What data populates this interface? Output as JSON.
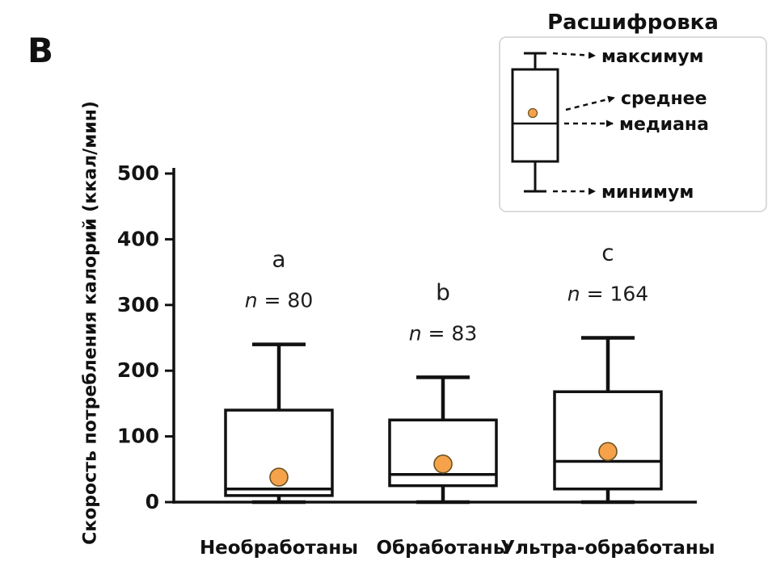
{
  "panel_label": "В",
  "legend": {
    "title": "Расшифровка",
    "items": [
      {
        "name": "maximum",
        "label": "максимум"
      },
      {
        "name": "mean",
        "label": "среднее"
      },
      {
        "name": "median",
        "label": "медиана"
      },
      {
        "name": "minimum",
        "label": "минимум"
      }
    ]
  },
  "chart_data": {
    "type": "boxplot",
    "title": "",
    "ylabel": "Скорость потребления калорий (ккал/мин)",
    "xlabel": "",
    "ylim": [
      0,
      500
    ],
    "yticks": [
      0,
      100,
      200,
      300,
      400,
      500
    ],
    "grid": false,
    "categories": [
      "Необработаны",
      "Обработаны",
      "Ультра-обработаны"
    ],
    "series": [
      {
        "category": "Необработаны",
        "letter": "a",
        "n_label": "n = 80",
        "min": 0,
        "q1": 10,
        "median": 20,
        "q3": 140,
        "max": 240,
        "mean": 38
      },
      {
        "category": "Обработаны",
        "letter": "b",
        "n_label": "n = 83",
        "min": 0,
        "q1": 25,
        "median": 42,
        "q3": 125,
        "max": 190,
        "mean": 58
      },
      {
        "category": "Ультра-обработаны",
        "letter": "c",
        "n_label": "n = 164",
        "min": 0,
        "q1": 20,
        "median": 62,
        "q3": 168,
        "max": 250,
        "mean": 77
      }
    ],
    "colors": {
      "line": "#111111",
      "box_fill": "#ffffff",
      "mean_fill": "#F5A24B",
      "mean_stroke": "#6b5323"
    }
  }
}
